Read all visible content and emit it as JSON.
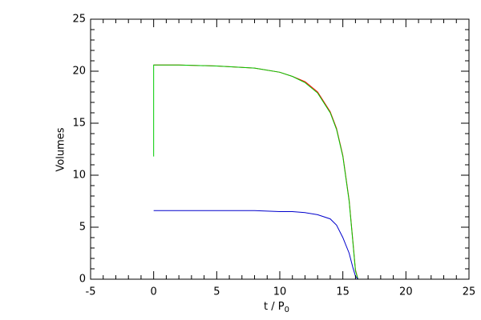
{
  "chart_data": {
    "type": "line",
    "x_label": "t / P",
    "x_label_subscript": "0",
    "y_label": "Volumes",
    "x": [
      0,
      0,
      2,
      5,
      8,
      10,
      11,
      12,
      13,
      14,
      14.5,
      15,
      15.5,
      15.8,
      16,
      16.2,
      20
    ],
    "series": [
      {
        "color": "#ff0000",
        "values": [
          null,
          20.6,
          20.6,
          20.5,
          20.3,
          19.9,
          19.5,
          19.0,
          18.0,
          16.1,
          14.5,
          11.9,
          7.6,
          3.6,
          0.9,
          0,
          null
        ]
      },
      {
        "color": "#00cc00",
        "values": [
          11.8,
          20.6,
          20.6,
          20.5,
          20.3,
          19.9,
          19.5,
          18.9,
          17.9,
          16.0,
          14.4,
          11.8,
          7.5,
          3.5,
          0.8,
          0,
          null
        ]
      },
      {
        "color": "#0000cc",
        "values": [
          6.6,
          6.6,
          6.6,
          6.6,
          6.6,
          6.5,
          6.5,
          6.4,
          6.2,
          5.8,
          5.2,
          4.0,
          2.5,
          1.1,
          0.3,
          0,
          0
        ]
      }
    ],
    "xlim": [
      -5,
      25
    ],
    "ylim": [
      0,
      25
    ],
    "xticks": [
      -5,
      0,
      5,
      10,
      15,
      20,
      25
    ],
    "yticks": [
      0,
      5,
      10,
      15,
      20,
      25
    ],
    "x_minor": 5,
    "y_minor": 5
  }
}
